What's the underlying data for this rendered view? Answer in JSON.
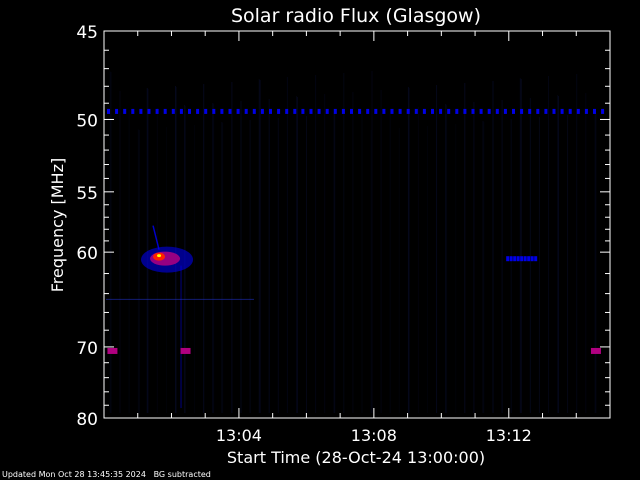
{
  "chart_data": {
    "type": "heatmap",
    "title": "Solar radio Flux (Glasgow)",
    "xlabel": "Start Time (28-Oct-24 13:00:00)",
    "ylabel": "Frequency [MHz]",
    "x_unit": "time",
    "x_range": [
      "13:00:00",
      "13:15:00"
    ],
    "x_ticks": [
      "13:04",
      "13:08",
      "13:12"
    ],
    "y_range": [
      45,
      80
    ],
    "y_ticks": [
      45,
      50,
      55,
      60,
      70,
      80
    ],
    "y_scale": "reciprocal",
    "colors": {
      "background": "#000000",
      "low": "#0000ff",
      "mid": "#b00080",
      "high": "#ff2000",
      "peak": "#ffff00"
    },
    "features": [
      {
        "name": "burst",
        "time": "13:01:45",
        "freq_mhz": 60.5,
        "intensity": "high"
      },
      {
        "name": "band",
        "freq_mhz": 49.5,
        "time_range": [
          "13:00:00",
          "13:15:00"
        ],
        "intensity": "low"
      },
      {
        "name": "band",
        "freq_mhz": 60.6,
        "time_range": [
          "13:11:50",
          "13:12:50"
        ],
        "intensity": "low"
      },
      {
        "name": "spot",
        "time": "13:00:15",
        "freq_mhz": 70.5,
        "intensity": "mid"
      },
      {
        "name": "spot",
        "time": "13:02:25",
        "freq_mhz": 70.5,
        "intensity": "mid"
      },
      {
        "name": "spot",
        "time": "13:14:35",
        "freq_mhz": 70.5,
        "intensity": "mid"
      }
    ]
  },
  "footer": {
    "updated": "Updated Mon Oct 28 13:45:35 2024",
    "note": "BG subtracted"
  }
}
